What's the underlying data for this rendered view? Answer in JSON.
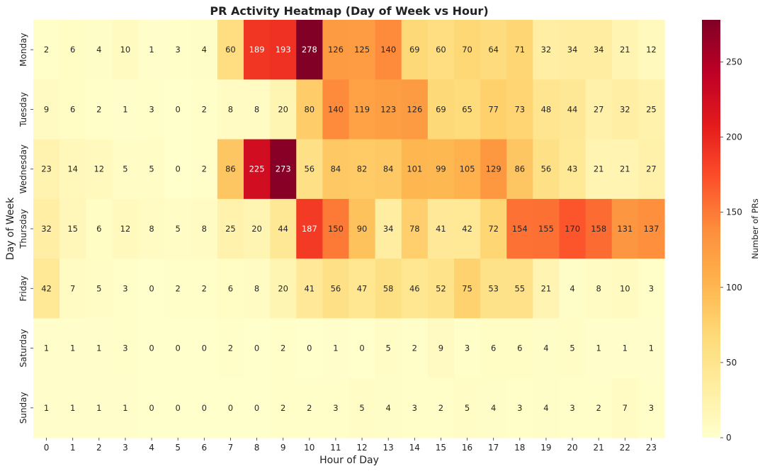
{
  "chart_data": {
    "type": "heatmap",
    "title": "PR Activity Heatmap (Day of Week vs Hour)",
    "xlabel": "Hour of Day",
    "ylabel": "Day of Week",
    "x_categories": [
      "0",
      "1",
      "2",
      "3",
      "4",
      "5",
      "6",
      "7",
      "8",
      "9",
      "10",
      "11",
      "12",
      "13",
      "14",
      "15",
      "16",
      "17",
      "18",
      "19",
      "20",
      "21",
      "22",
      "23"
    ],
    "y_categories": [
      "Monday",
      "Tuesday",
      "Wednesday",
      "Thursday",
      "Friday",
      "Saturday",
      "Sunday"
    ],
    "values": [
      [
        2,
        6,
        4,
        10,
        1,
        3,
        4,
        60,
        189,
        193,
        278,
        126,
        125,
        140,
        69,
        60,
        70,
        64,
        71,
        32,
        34,
        34,
        21,
        12
      ],
      [
        9,
        6,
        2,
        1,
        3,
        0,
        2,
        8,
        8,
        20,
        80,
        140,
        119,
        123,
        126,
        69,
        65,
        77,
        73,
        48,
        44,
        27,
        32,
        25
      ],
      [
        23,
        14,
        12,
        5,
        5,
        0,
        2,
        86,
        225,
        273,
        56,
        84,
        82,
        84,
        101,
        99,
        105,
        129,
        86,
        56,
        43,
        21,
        21,
        27
      ],
      [
        32,
        15,
        6,
        12,
        8,
        5,
        8,
        25,
        20,
        44,
        187,
        150,
        90,
        34,
        78,
        41,
        42,
        72,
        154,
        155,
        170,
        158,
        131,
        137
      ],
      [
        42,
        7,
        5,
        3,
        0,
        2,
        2,
        6,
        8,
        20,
        41,
        56,
        47,
        58,
        46,
        52,
        75,
        53,
        55,
        21,
        4,
        8,
        10,
        3
      ],
      [
        1,
        1,
        1,
        3,
        0,
        0,
        0,
        2,
        0,
        2,
        0,
        1,
        0,
        5,
        2,
        9,
        3,
        6,
        6,
        4,
        5,
        1,
        1,
        1
      ],
      [
        1,
        1,
        1,
        1,
        0,
        0,
        0,
        0,
        0,
        2,
        2,
        3,
        5,
        4,
        3,
        2,
        5,
        4,
        3,
        4,
        3,
        2,
        7,
        3
      ]
    ],
    "colormap": "YlOrRd",
    "vmin": 0,
    "vmax": 278,
    "colorbar": {
      "label": "Number of PRs",
      "ticks": [
        0,
        50,
        100,
        150,
        200,
        250
      ]
    }
  }
}
